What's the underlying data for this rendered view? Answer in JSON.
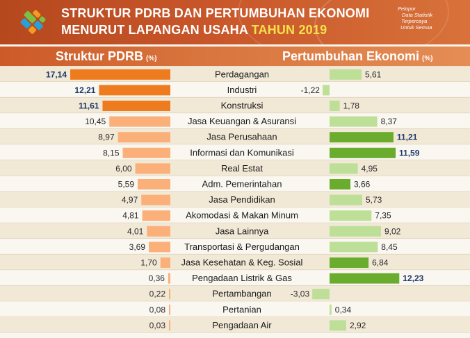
{
  "header": {
    "title_line1": "STRUKTUR PDRB DAN PERTUMBUHAN EKONOMI",
    "title_line2": "MENURUT LAPANGAN USAHA",
    "title_year": "TAHUN 2019",
    "tagline": [
      "Pelopor",
      "Data Statistik",
      "Terpercaya",
      "Untuk Semua"
    ]
  },
  "sections": {
    "left_title": "Struktur PDRB",
    "left_unit": "(%)",
    "right_title": "Pertumbuhan Ekonomi",
    "right_unit": "(%)"
  },
  "colors": {
    "header_bg": "#c8562a",
    "orange_strong": "#ef7b1f",
    "orange_light": "#fbb07a",
    "green_light": "#bedf98",
    "green_strong": "#6aac2e",
    "value_bold": "#1b3a6b",
    "row_odd": "#f1e8d6",
    "row_even": "#faf7f0"
  },
  "chart_data": {
    "type": "bar",
    "categories": [
      "Perdagangan",
      "Industri",
      "Konstruksi",
      "Jasa Keuangan & Asuransi",
      "Jasa Perusahaan",
      "Informasi dan Komunikasi",
      "Real Estat",
      "Adm. Pemerintahan",
      "Jasa Pendidikan",
      "Akomodasi & Makan Minum",
      "Jasa Lainnya",
      "Transportasi & Pergudangan",
      "Jasa Kesehatan & Keg. Sosial",
      "Pengadaan Listrik & Gas",
      "Pertambangan",
      "Pertanian",
      "Pengadaan Air"
    ],
    "series": [
      {
        "name": "Struktur PDRB",
        "values": [
          17.14,
          12.21,
          11.61,
          10.45,
          8.97,
          8.15,
          6.0,
          5.59,
          4.97,
          4.81,
          4.01,
          3.69,
          1.7,
          0.36,
          0.22,
          0.08,
          0.03
        ],
        "labels": [
          "17,14",
          "12,21",
          "11,61",
          "10,45",
          "8,97",
          "8,15",
          "6,00",
          "5,59",
          "4,97",
          "4,81",
          "4,01",
          "3,69",
          "1,70",
          "0,36",
          "0,22",
          "0,08",
          "0,03"
        ],
        "highlight": [
          true,
          true,
          true,
          false,
          false,
          false,
          false,
          false,
          false,
          false,
          false,
          false,
          false,
          false,
          false,
          false,
          false
        ]
      },
      {
        "name": "Pertumbuhan Ekonomi",
        "values": [
          5.61,
          -1.22,
          1.78,
          8.37,
          11.21,
          11.59,
          4.95,
          3.66,
          5.73,
          7.35,
          9.02,
          8.45,
          6.84,
          12.23,
          -3.03,
          0.34,
          2.92
        ],
        "labels": [
          "5,61",
          "-1,22",
          "1,78",
          "8,37",
          "11,21",
          "11,59",
          "4,95",
          "3,66",
          "5,73",
          "7,35",
          "9,02",
          "8,45",
          "6,84",
          "12,23",
          "-3,03",
          "0,34",
          "2,92"
        ],
        "highlight": [
          false,
          false,
          false,
          false,
          true,
          true,
          false,
          true,
          false,
          false,
          false,
          false,
          true,
          true,
          false,
          false,
          false
        ],
        "bold": [
          false,
          false,
          false,
          false,
          true,
          true,
          false,
          false,
          false,
          false,
          false,
          false,
          false,
          true,
          false,
          false,
          false
        ]
      }
    ]
  }
}
